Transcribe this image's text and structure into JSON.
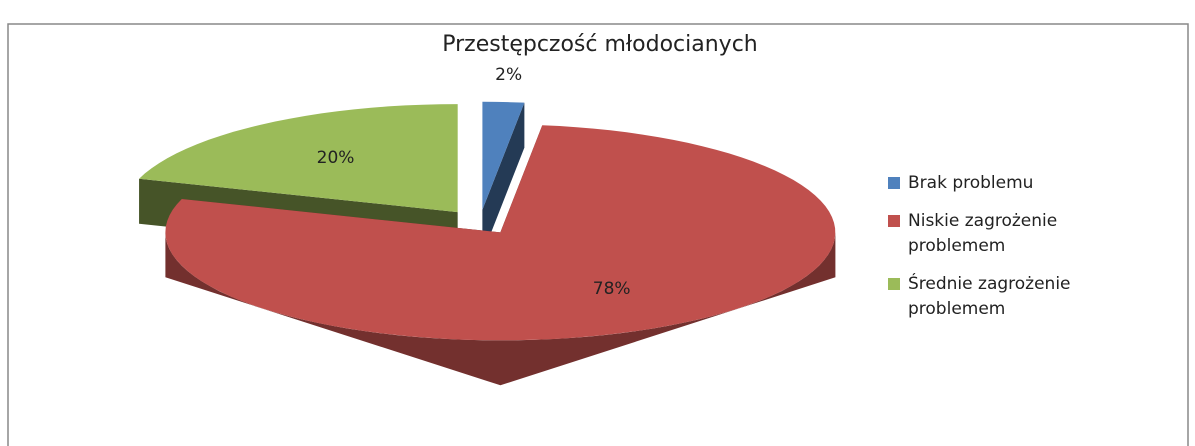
{
  "chart_data": {
    "type": "pie",
    "title": "Przestępczość młodocianych",
    "categories": [
      "Brak problemu",
      "Niskie zagrożenie problemem",
      "Średnie zagrożenie problemem"
    ],
    "values": [
      2,
      78,
      20
    ],
    "value_labels": [
      "2%",
      "78%",
      "20%"
    ],
    "colors": [
      "#4f81bd",
      "#c0504d",
      "#9bbb59"
    ],
    "legend": "right"
  }
}
